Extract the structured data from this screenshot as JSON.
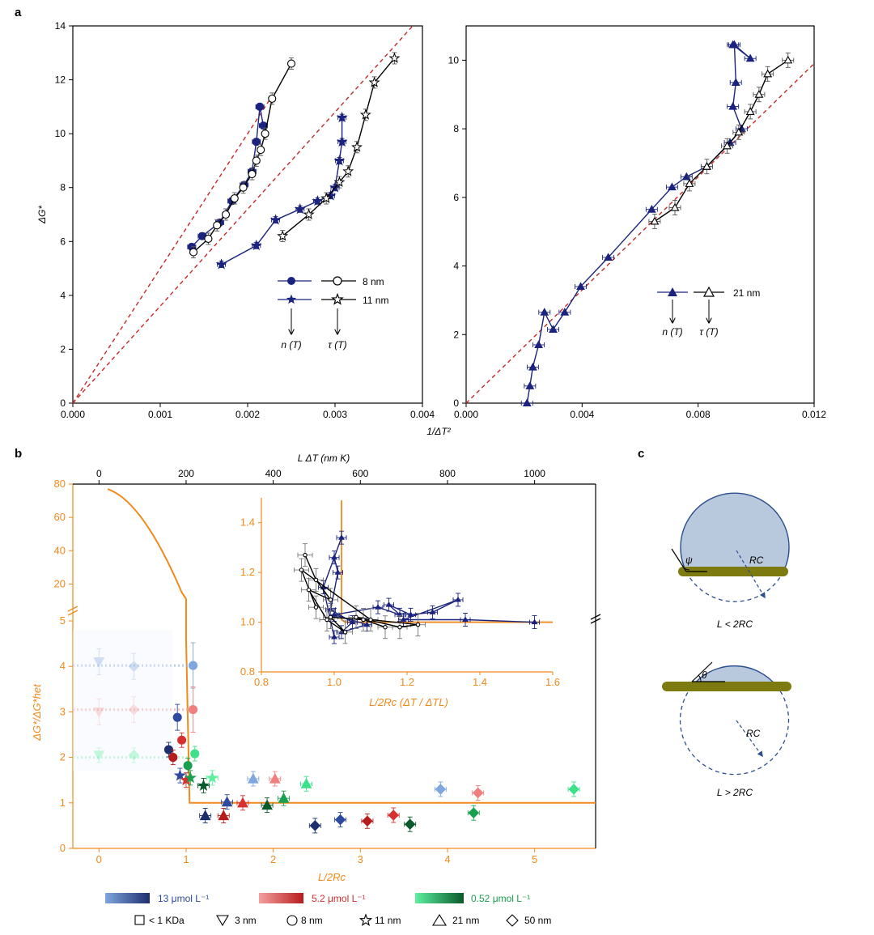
{
  "panel_labels": [
    "a",
    "b",
    "c"
  ],
  "colors": {
    "navy": "#1a237e",
    "black": "#000000",
    "grey": "#555555",
    "red_dash": "#c62828",
    "orange": "#f08a1c",
    "blue_scale": [
      "#7fa6de",
      "#1e2f6e"
    ],
    "red_scale": [
      "#f4a0a0",
      "#b71c1c"
    ],
    "green_scale": [
      "#5ef0a0",
      "#0a5a2a"
    ],
    "droplet_fill": "#b9c9dd",
    "droplet_stroke": "#2c4f8f",
    "rod": "#7d7a10"
  },
  "chart_data": [
    {
      "id": "a-left",
      "type": "scatter",
      "ylabel": "ΔG*",
      "xlim": [
        0,
        0.004
      ],
      "ylim": [
        0,
        14
      ],
      "xticks": [
        "0.000",
        "0.001",
        "0.002",
        "0.003",
        "0.004"
      ],
      "yticks": [
        "0",
        "2",
        "4",
        "6",
        "8",
        "10",
        "12",
        "14"
      ],
      "series": [
        {
          "name": "8 nm",
          "quantity": "n (T)",
          "marker": "circle-filled",
          "color": "#1a237e",
          "x": [
            0.00136,
            0.00148,
            0.00168,
            0.00182,
            0.00196,
            0.00205,
            0.0021,
            0.00214,
            0.00218
          ],
          "y": [
            5.8,
            6.2,
            6.7,
            7.5,
            8.1,
            8.6,
            9.7,
            11.0,
            10.3
          ]
        },
        {
          "name": "8 nm",
          "quantity": "τ (T)",
          "marker": "circle-open",
          "color": "#000000",
          "x": [
            0.00138,
            0.00155,
            0.00165,
            0.00175,
            0.00185,
            0.00195,
            0.00205,
            0.0021,
            0.00215,
            0.0022,
            0.00228,
            0.0025
          ],
          "y": [
            5.6,
            6.1,
            6.6,
            7.0,
            7.6,
            8.0,
            8.5,
            9.0,
            9.4,
            10.0,
            11.3,
            12.6
          ]
        },
        {
          "name": "11 nm",
          "quantity": "n (T)",
          "marker": "star-filled",
          "color": "#1a237e",
          "x": [
            0.0017,
            0.0021,
            0.00232,
            0.0026,
            0.0028,
            0.00295,
            0.003,
            0.00305,
            0.00308,
            0.00308
          ],
          "y": [
            5.15,
            5.85,
            6.8,
            7.2,
            7.5,
            7.7,
            8.0,
            9.0,
            9.7,
            10.6
          ]
        },
        {
          "name": "11 nm",
          "quantity": "τ (T)",
          "marker": "star-open",
          "color": "#000000",
          "x": [
            0.0024,
            0.0027,
            0.0029,
            0.00305,
            0.00315,
            0.00325,
            0.00335,
            0.00345,
            0.00368
          ],
          "y": [
            6.2,
            7.0,
            7.6,
            8.2,
            8.6,
            9.5,
            10.7,
            11.9,
            12.8
          ]
        }
      ],
      "reference_lines": [
        {
          "slope": 5000
        },
        {
          "slope": 3600
        }
      ]
    },
    {
      "id": "a-right",
      "type": "scatter",
      "xlabel": "1/ΔT²",
      "xlim": [
        0,
        0.012
      ],
      "ylim": [
        0,
        11
      ],
      "xticks": [
        "0.000",
        "0.004",
        "0.008",
        "0.012"
      ],
      "yticks": [
        "0",
        "2",
        "4",
        "6",
        "8",
        "10"
      ],
      "series": [
        {
          "name": "21 nm",
          "quantity": "n (T)",
          "marker": "triangle-filled",
          "color": "#1a237e",
          "x": [
            0.0021,
            0.0022,
            0.0023,
            0.0025,
            0.0027,
            0.003,
            0.0034,
            0.00395,
            0.0049,
            0.0064,
            0.0071,
            0.0076,
            0.0083,
            0.0091,
            0.0095,
            0.0092,
            0.0093,
            0.00925,
            0.0098,
            0.0092
          ],
          "y": [
            0.0,
            0.5,
            1.05,
            1.7,
            2.65,
            2.15,
            2.65,
            3.4,
            4.25,
            5.65,
            6.3,
            6.6,
            6.9,
            7.6,
            8.0,
            8.65,
            9.35,
            10.45,
            10.05,
            10.45
          ]
        },
        {
          "name": "21 nm",
          "quantity": "τ (T)",
          "marker": "triangle-open",
          "color": "#000000",
          "x": [
            0.0065,
            0.0072,
            0.0077,
            0.0083,
            0.009,
            0.0094,
            0.0098,
            0.0101,
            0.0104,
            0.0111
          ],
          "y": [
            5.3,
            5.7,
            6.4,
            6.9,
            7.5,
            7.9,
            8.5,
            9.0,
            9.6,
            10.0
          ]
        }
      ],
      "reference_lines": [
        {
          "slope": 825
        }
      ]
    },
    {
      "id": "b-main",
      "type": "scatter",
      "xlabel": "L/2Rc",
      "ylabel": "ΔG*/ΔG*het",
      "top_xlabel": "L ΔT (nm K)",
      "xlim": [
        -0.3,
        5.7
      ],
      "ylim_lower": [
        0,
        5
      ],
      "ylim_upper": [
        10,
        80
      ],
      "xticks": [
        "0",
        "1",
        "2",
        "3",
        "4",
        "5"
      ],
      "top_xticks": [
        "0",
        "200",
        "400",
        "600",
        "800",
        "1000"
      ],
      "yticks_lower": [
        "0",
        "1",
        "2",
        "3",
        "4",
        "5"
      ],
      "yticks_upper": [
        "20",
        "40",
        "60",
        "80"
      ],
      "points": [
        {
          "x": 0.0,
          "y": 4.1,
          "c": "#7fa6de",
          "m": "tri-down",
          "faded": true
        },
        {
          "x": 0.4,
          "y": 4.0,
          "c": "#7fa6de",
          "m": "diamond",
          "faded": true
        },
        {
          "x": 0.0,
          "y": 3.0,
          "c": "#f4a0a0",
          "m": "tri-down",
          "faded": true
        },
        {
          "x": 0.4,
          "y": 3.05,
          "c": "#f4a0a0",
          "m": "diamond",
          "faded": true
        },
        {
          "x": 0.0,
          "y": 2.05,
          "c": "#5ef0a0",
          "m": "tri-down",
          "faded": true
        },
        {
          "x": 0.4,
          "y": 2.05,
          "c": "#5ef0a0",
          "m": "diamond",
          "faded": true
        },
        {
          "x": 1.08,
          "y": 4.02,
          "c": "#7fa6de",
          "m": "circle"
        },
        {
          "x": 0.9,
          "y": 2.88,
          "c": "#2d4aa0",
          "m": "circle"
        },
        {
          "x": 0.8,
          "y": 2.17,
          "c": "#1e2f6e",
          "m": "circle"
        },
        {
          "x": 1.08,
          "y": 3.05,
          "c": "#f08080",
          "m": "circle"
        },
        {
          "x": 0.95,
          "y": 2.38,
          "c": "#d83030",
          "m": "circle"
        },
        {
          "x": 0.85,
          "y": 2.0,
          "c": "#b71c1c",
          "m": "circle"
        },
        {
          "x": 1.1,
          "y": 2.08,
          "c": "#3ee08a",
          "m": "circle"
        },
        {
          "x": 1.02,
          "y": 1.82,
          "c": "#1aa050",
          "m": "circle"
        },
        {
          "x": 0.93,
          "y": 1.6,
          "c": "#2d4aa0",
          "m": "star"
        },
        {
          "x": 1.0,
          "y": 1.5,
          "c": "#d83030",
          "m": "star"
        },
        {
          "x": 1.05,
          "y": 1.55,
          "c": "#1aa050",
          "m": "star"
        },
        {
          "x": 1.2,
          "y": 1.38,
          "c": "#0a5a2a",
          "m": "star"
        },
        {
          "x": 1.3,
          "y": 1.55,
          "c": "#5ef0a0",
          "m": "star"
        },
        {
          "x": 1.22,
          "y": 0.72,
          "c": "#1e2f6e",
          "m": "triangle"
        },
        {
          "x": 1.47,
          "y": 1.02,
          "c": "#2d4aa0",
          "m": "triangle"
        },
        {
          "x": 1.77,
          "y": 1.53,
          "c": "#7fa6de",
          "m": "triangle"
        },
        {
          "x": 1.43,
          "y": 0.72,
          "c": "#b71c1c",
          "m": "triangle"
        },
        {
          "x": 1.65,
          "y": 1.0,
          "c": "#d83030",
          "m": "triangle"
        },
        {
          "x": 2.02,
          "y": 1.53,
          "c": "#f08080",
          "m": "triangle"
        },
        {
          "x": 1.93,
          "y": 0.95,
          "c": "#0a5a2a",
          "m": "triangle"
        },
        {
          "x": 2.12,
          "y": 1.1,
          "c": "#1aa050",
          "m": "triangle"
        },
        {
          "x": 2.38,
          "y": 1.42,
          "c": "#3ee08a",
          "m": "triangle"
        },
        {
          "x": 2.48,
          "y": 0.5,
          "c": "#1e2f6e",
          "m": "diamond"
        },
        {
          "x": 2.77,
          "y": 0.63,
          "c": "#2d4aa0",
          "m": "diamond"
        },
        {
          "x": 3.92,
          "y": 1.3,
          "c": "#7fa6de",
          "m": "diamond"
        },
        {
          "x": 3.08,
          "y": 0.6,
          "c": "#b71c1c",
          "m": "diamond"
        },
        {
          "x": 3.38,
          "y": 0.73,
          "c": "#d83030",
          "m": "diamond"
        },
        {
          "x": 4.35,
          "y": 1.22,
          "c": "#f08080",
          "m": "diamond"
        },
        {
          "x": 3.57,
          "y": 0.53,
          "c": "#0a5a2a",
          "m": "diamond"
        },
        {
          "x": 4.3,
          "y": 0.78,
          "c": "#1aa050",
          "m": "diamond"
        },
        {
          "x": 5.45,
          "y": 1.3,
          "c": "#3ee08a",
          "m": "diamond"
        }
      ]
    },
    {
      "id": "b-inset",
      "type": "line",
      "xlabel": "L/2Rc (ΔT / ΔTL)",
      "xlim": [
        0.8,
        1.6
      ],
      "ylim": [
        0.8,
        1.5
      ],
      "xticks": [
        "0.8",
        "1.0",
        "1.2",
        "1.4",
        "1.6"
      ],
      "yticks": [
        "0.8",
        "1.0",
        "1.2",
        "1.4"
      ],
      "series": [
        {
          "name": "n (T)",
          "color": "#1a237e",
          "x": [
            1.0,
            0.97,
            1.02,
            1.0,
            1.01,
            0.99,
            1.05,
            1.02,
            1.09,
            1.0,
            1.12,
            1.18,
            1.15,
            1.21,
            1.27,
            1.34,
            1.19,
            1.36,
            1.55
          ],
          "y": [
            0.94,
            1.14,
            1.34,
            1.26,
            1.2,
            1.05,
            1.0,
            0.96,
            0.99,
            1.03,
            1.06,
            1.03,
            1.07,
            1.03,
            1.04,
            1.09,
            1.01,
            1.01,
            1.0
          ]
        },
        {
          "name": "τ (T)",
          "color": "#000000",
          "x": [
            0.92,
            0.95,
            0.99,
            0.93,
            0.98,
            1.03,
            0.99,
            1.08,
            1.14,
            1.06,
            1.18,
            1.23,
            1.1,
            0.91,
            0.95
          ],
          "y": [
            1.27,
            1.17,
            1.09,
            1.13,
            1.01,
            0.96,
            1.02,
            1.01,
            0.98,
            1.02,
            0.98,
            0.99,
            1.01,
            1.21,
            1.06
          ]
        }
      ]
    }
  ],
  "legend_a_left": {
    "row1": "8 nm",
    "row2": "11 nm",
    "q1": "n (T)",
    "q2": "τ (T)"
  },
  "legend_a_right": {
    "row1": "21 nm",
    "q1": "n (T)",
    "q2": "τ (T)"
  },
  "legend_b": {
    "conc": [
      "13 μmol L⁻¹",
      "5.2 μmol L⁻¹",
      "0.52 μmol L⁻¹"
    ],
    "shapes": [
      "< 1 KDa",
      "3 nm",
      "8 nm",
      "11 nm",
      "21 nm",
      "50 nm"
    ]
  },
  "panel_c": {
    "top_caption": "L < 2RC",
    "bottom_caption": "L > 2RC",
    "angle1": "ψ",
    "angle2": "θ",
    "radius": "RC"
  }
}
